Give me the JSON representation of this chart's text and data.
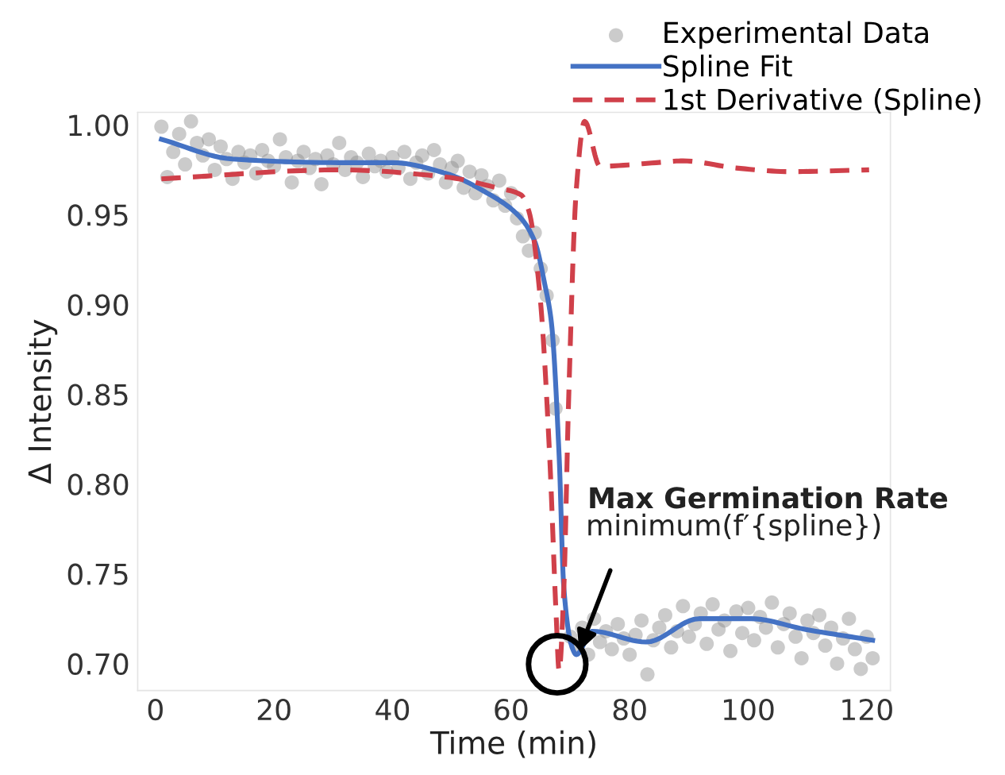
{
  "chart_data": {
    "type": "line",
    "xlabel": "Time (min)",
    "ylabel": "Δ Intensity",
    "xlim": [
      -3,
      124
    ],
    "ylim": [
      0.685,
      1.007
    ],
    "xticks": [
      0,
      20,
      40,
      60,
      80,
      100,
      120
    ],
    "yticks": [
      {
        "value": 0.7,
        "label": "0.70"
      },
      {
        "value": 0.75,
        "label": "0.75"
      },
      {
        "value": 0.8,
        "label": "0.80"
      },
      {
        "value": 0.85,
        "label": "0.85"
      },
      {
        "value": 0.9,
        "label": "0.90"
      },
      {
        "value": 0.95,
        "label": "0.95"
      },
      {
        "value": 1.0,
        "label": "1.00"
      }
    ],
    "grid": false,
    "legend": "top right",
    "series": [
      {
        "name": "Experimental Data",
        "type": "scatter",
        "marker": "circle",
        "color": "#8c8c8c",
        "x": [
          1,
          2,
          3,
          4,
          5,
          6,
          7,
          8,
          9,
          10,
          11,
          12,
          13,
          14,
          15,
          16,
          17,
          18,
          19,
          20,
          21,
          22,
          23,
          24,
          25,
          26,
          27,
          28,
          29,
          30,
          31,
          32,
          33,
          34,
          35,
          36,
          37,
          38,
          39,
          40,
          41,
          42,
          43,
          44,
          45,
          46,
          47,
          48,
          49,
          50,
          51,
          52,
          53,
          54,
          55,
          56,
          57,
          58,
          59,
          60,
          61,
          62,
          63,
          64,
          65,
          66,
          67,
          67.5,
          70,
          71,
          72,
          73,
          74,
          75,
          76,
          77,
          78,
          79,
          80,
          81,
          82,
          83,
          84,
          85,
          86,
          87,
          88,
          89,
          90,
          91,
          92,
          93,
          94,
          95,
          96,
          97,
          98,
          99,
          100,
          101,
          102,
          103,
          104,
          105,
          106,
          107,
          108,
          109,
          110,
          111,
          112,
          113,
          114,
          115,
          116,
          117,
          118,
          119,
          120,
          121
        ],
        "values": [
          0.999,
          0.971,
          0.985,
          0.995,
          0.978,
          1.002,
          0.99,
          0.983,
          0.992,
          0.975,
          0.988,
          0.981,
          0.97,
          0.985,
          0.979,
          0.983,
          0.973,
          0.986,
          0.98,
          0.977,
          0.992,
          0.982,
          0.968,
          0.98,
          0.985,
          0.976,
          0.981,
          0.967,
          0.983,
          0.978,
          0.99,
          0.975,
          0.982,
          0.979,
          0.971,
          0.984,
          0.977,
          0.98,
          0.974,
          0.982,
          0.976,
          0.985,
          0.97,
          0.979,
          0.983,
          0.973,
          0.986,
          0.978,
          0.968,
          0.976,
          0.98,
          0.965,
          0.974,
          0.962,
          0.972,
          0.966,
          0.958,
          0.969,
          0.955,
          0.962,
          0.948,
          0.938,
          0.93,
          0.94,
          0.92,
          0.905,
          0.88,
          0.842,
          0.715,
          0.71,
          0.72,
          0.705,
          0.725,
          0.712,
          0.718,
          0.708,
          0.722,
          0.714,
          0.705,
          0.716,
          0.724,
          0.694,
          0.713,
          0.72,
          0.727,
          0.709,
          0.718,
          0.732,
          0.715,
          0.722,
          0.728,
          0.711,
          0.733,
          0.719,
          0.724,
          0.707,
          0.729,
          0.717,
          0.731,
          0.713,
          0.726,
          0.72,
          0.734,
          0.709,
          0.722,
          0.728,
          0.715,
          0.703,
          0.724,
          0.717,
          0.727,
          0.71,
          0.72,
          0.7,
          0.714,
          0.725,
          0.708,
          0.697,
          0.715,
          0.703
        ]
      },
      {
        "name": "Spline Fit",
        "line_style": "solid",
        "color": "#4472c4",
        "x": [
          1,
          13,
          31,
          40,
          49,
          56,
          61.4,
          64,
          65.7,
          66.8,
          68.1,
          68.9,
          70.2,
          71,
          73.7,
          82.8,
          91.7,
          100.5,
          109.7,
          121
        ],
        "values": [
          0.992,
          0.981,
          0.979,
          0.979,
          0.973,
          0.962,
          0.949,
          0.935,
          0.911,
          0.89,
          0.816,
          0.742,
          0.71,
          0.705,
          0.718,
          0.712,
          0.725,
          0.725,
          0.719,
          0.713
        ]
      },
      {
        "name": "1st Derivative (Spline)",
        "line_style": "dashed",
        "color": "#d0404a",
        "x": [
          1,
          31,
          49,
          57.6,
          61.7,
          63,
          64.9,
          66.5,
          67.6,
          68.1,
          68.9,
          69.7,
          71,
          72.4,
          75,
          84.5,
          89,
          98,
          107,
          120.4
        ],
        "values": [
          0.97,
          0.975,
          0.971,
          0.965,
          0.961,
          0.952,
          0.904,
          0.816,
          0.727,
          0.696,
          0.742,
          0.846,
          0.964,
          1.002,
          0.977,
          0.979,
          0.98,
          0.976,
          0.974,
          0.975
        ]
      }
    ],
    "annotations": [
      "Max Germination Rate",
      {
        "text": "minimum(f′{spline})",
        "x": 71.5,
        "y": 0.707
      }
    ]
  }
}
